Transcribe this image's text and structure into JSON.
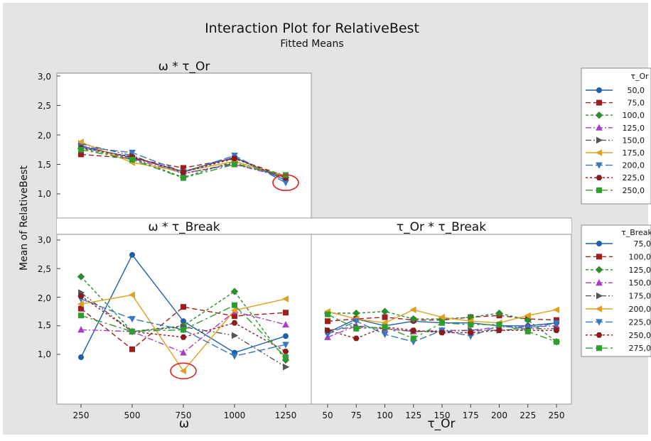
{
  "title": "Interaction Plot for RelativeBest",
  "subtitle": "Fitted Means",
  "ylabel": "Mean of RelativeBest",
  "panel_titles": [
    "ω * τ_Or",
    "ω * τ_Break",
    "τ_Or * τ_Break"
  ],
  "x_axis_titles": [
    "ω",
    "τ_Or"
  ],
  "legends": [
    {
      "title": "τ_Or",
      "entries": [
        "50,0",
        "75,0",
        "100,0",
        "125,0",
        "150,0",
        "175,0",
        "200,0",
        "225,0",
        "250,0"
      ]
    },
    {
      "title": "τ_Break",
      "entries": [
        "75,0",
        "100,0",
        "125,0",
        "150,0",
        "175,0",
        "200,0",
        "225,0",
        "250,0",
        "275,0"
      ]
    }
  ],
  "series_style": [
    {
      "color": "#1f5fa8",
      "marker": "circle",
      "dash": ""
    },
    {
      "color": "#9e1e1e",
      "marker": "square",
      "dash": "7,4"
    },
    {
      "color": "#2e8b2e",
      "marker": "diamond",
      "dash": "4,3"
    },
    {
      "color": "#a93cc9",
      "marker": "triangle-up",
      "dash": "8,3,2,3"
    },
    {
      "color": "#555555",
      "marker": "triangle-right",
      "dash": "8,3,2,3,2,3"
    },
    {
      "color": "#e0a020",
      "marker": "triangle-left",
      "dash": ""
    },
    {
      "color": "#3577c2",
      "marker": "triangle-down",
      "dash": "10,4"
    },
    {
      "color": "#8b1a1a",
      "marker": "hexagon",
      "dash": "3,3"
    },
    {
      "color": "#2f9e2f",
      "marker": "square",
      "dash": "10,4,3,4"
    }
  ],
  "chart_data": [
    {
      "type": "line",
      "title": "ω * τ_Or",
      "xlabel": "ω",
      "ylabel": "Mean of RelativeBest",
      "categories": [
        "250",
        "500",
        "750",
        "1000",
        "1250"
      ],
      "ylim": [
        0.55,
        3.1
      ],
      "yticks": [
        "1,0",
        "1,5",
        "2,0",
        "2,5",
        "3,0"
      ],
      "series": [
        {
          "name": "50,0",
          "values": [
            1.8,
            1.62,
            1.38,
            1.62,
            1.23
          ]
        },
        {
          "name": "75,0",
          "values": [
            1.67,
            1.6,
            1.44,
            1.6,
            1.3
          ]
        },
        {
          "name": "100,0",
          "values": [
            1.77,
            1.6,
            1.28,
            1.55,
            1.28
          ]
        },
        {
          "name": "125,0",
          "values": [
            1.82,
            1.6,
            1.35,
            1.5,
            1.28
          ]
        },
        {
          "name": "150,0",
          "values": [
            1.85,
            1.65,
            1.34,
            1.52,
            1.28
          ]
        },
        {
          "name": "175,0",
          "values": [
            1.88,
            1.53,
            1.38,
            1.55,
            1.3
          ]
        },
        {
          "name": "200,0",
          "values": [
            1.8,
            1.7,
            1.37,
            1.65,
            1.19
          ]
        },
        {
          "name": "225,0",
          "values": [
            1.78,
            1.63,
            1.37,
            1.6,
            1.27
          ]
        },
        {
          "name": "250,0",
          "values": [
            1.75,
            1.58,
            1.27,
            1.5,
            1.32
          ]
        }
      ],
      "annotation": {
        "type": "circle",
        "category": "1250",
        "value": 1.19
      }
    },
    {
      "type": "line",
      "title": "ω * τ_Break",
      "xlabel": "ω",
      "ylabel": "Mean of RelativeBest",
      "categories": [
        "250",
        "500",
        "750",
        "1000",
        "1250"
      ],
      "ylim": [
        0.55,
        3.1
      ],
      "yticks": [
        "1,0",
        "1,5",
        "2,0",
        "2,5",
        "3,0"
      ],
      "series": [
        {
          "name": "75,0",
          "values": [
            0.95,
            2.74,
            1.58,
            1.03,
            1.32
          ]
        },
        {
          "name": "100,0",
          "values": [
            1.8,
            1.09,
            1.83,
            1.67,
            1.73
          ]
        },
        {
          "name": "125,0",
          "values": [
            2.36,
            1.4,
            1.5,
            2.1,
            0.9
          ]
        },
        {
          "name": "150,0",
          "values": [
            1.43,
            1.4,
            1.03,
            1.75,
            1.52
          ]
        },
        {
          "name": "175,0",
          "values": [
            2.08,
            1.4,
            1.48,
            1.33,
            0.78
          ]
        },
        {
          "name": "200,0",
          "values": [
            1.88,
            2.04,
            0.71,
            1.77,
            1.97
          ]
        },
        {
          "name": "225,0",
          "values": [
            1.97,
            1.62,
            1.43,
            0.97,
            1.17
          ]
        },
        {
          "name": "250,0",
          "values": [
            2.02,
            1.4,
            1.3,
            1.55,
            1.05
          ]
        },
        {
          "name": "275,0",
          "values": [
            1.68,
            1.4,
            1.43,
            1.86,
            0.95
          ]
        }
      ],
      "annotation": {
        "type": "circle",
        "category": "750",
        "value": 0.71
      }
    },
    {
      "type": "line",
      "title": "τ_Or * τ_Break",
      "xlabel": "τ_Or",
      "ylabel": "Mean of RelativeBest",
      "categories": [
        "50",
        "75",
        "100",
        "125",
        "150",
        "175",
        "200",
        "225",
        "250"
      ],
      "ylim": [
        0.55,
        3.1
      ],
      "series": [
        {
          "name": "75,0",
          "values": [
            1.38,
            1.62,
            1.5,
            1.58,
            1.55,
            1.55,
            1.5,
            1.5,
            1.55
          ]
        },
        {
          "name": "100,0",
          "values": [
            1.58,
            1.62,
            1.65,
            1.6,
            1.6,
            1.65,
            1.68,
            1.62,
            1.6
          ]
        },
        {
          "name": "125,0",
          "values": [
            1.72,
            1.72,
            1.75,
            1.62,
            1.62,
            1.65,
            1.72,
            1.6,
            1.22
          ]
        },
        {
          "name": "150,0",
          "values": [
            1.3,
            1.5,
            1.45,
            1.4,
            1.42,
            1.42,
            1.48,
            1.48,
            1.5
          ]
        },
        {
          "name": "175,0",
          "values": [
            1.42,
            1.48,
            1.45,
            1.4,
            1.4,
            1.42,
            1.42,
            1.45,
            1.45
          ]
        },
        {
          "name": "200,0",
          "values": [
            1.75,
            1.62,
            1.55,
            1.78,
            1.65,
            1.58,
            1.55,
            1.68,
            1.78
          ]
        },
        {
          "name": "225,0",
          "values": [
            1.35,
            1.58,
            1.35,
            1.22,
            1.42,
            1.32,
            1.5,
            1.45,
            1.55
          ]
        },
        {
          "name": "250,0",
          "values": [
            1.42,
            1.28,
            1.48,
            1.42,
            1.38,
            1.38,
            1.42,
            1.42,
            1.42
          ]
        },
        {
          "name": "275,0",
          "values": [
            1.7,
            1.45,
            1.48,
            1.28,
            1.55,
            1.52,
            1.52,
            1.4,
            1.22
          ]
        }
      ]
    }
  ]
}
